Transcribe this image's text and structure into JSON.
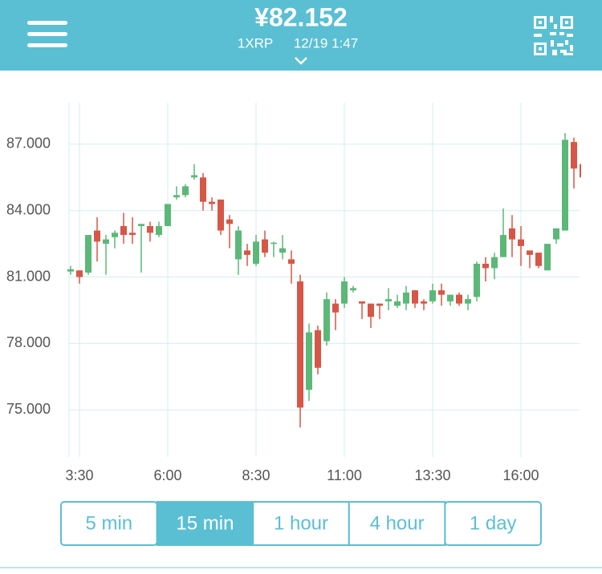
{
  "header": {
    "price": "¥82.152",
    "pair": "1XRP",
    "time": "12/19 1:47"
  },
  "chart_data": {
    "type": "candlestick",
    "categories": [
      null,
      "3:30",
      null,
      null,
      null,
      null,
      null,
      null,
      null,
      null,
      null,
      "6:00",
      null,
      null,
      null,
      null,
      null,
      null,
      null,
      null,
      null,
      "8:30",
      null,
      null,
      null,
      null,
      null,
      null,
      null,
      null,
      null,
      "11:00",
      null,
      null,
      null,
      null,
      null,
      null,
      null,
      null,
      null,
      "13:30",
      null,
      null,
      null,
      null,
      null,
      null,
      null,
      null,
      null,
      "16:00",
      null,
      null,
      null,
      null,
      null,
      null,
      null
    ],
    "open": [
      81.25,
      81.3,
      81.2,
      83.1,
      82.5,
      82.8,
      83.3,
      83.0,
      83.3,
      83.3,
      82.9,
      83.3,
      84.6,
      84.7,
      85.5,
      85.5,
      84.4,
      84.5,
      83.6,
      81.8,
      82.2,
      81.6,
      82.7,
      82.5,
      82.1,
      81.8,
      80.8,
      75.9,
      78.6,
      78.1,
      79.8,
      79.8,
      80.4,
      79.9,
      79.8,
      79.8,
      79.9,
      79.7,
      79.8,
      80.4,
      79.9,
      79.9,
      80.4,
      79.9,
      80.2,
      79.8,
      80.1,
      81.6,
      81.4,
      81.9,
      83.2,
      82.7,
      82.2,
      82.1,
      81.3,
      82.7,
      83.1,
      87.1,
      86.1
    ],
    "high": [
      81.5,
      81.3,
      82.9,
      83.7,
      82.9,
      83.1,
      83.9,
      83.7,
      83.4,
      83.5,
      83.5,
      84.3,
      85.1,
      85.2,
      86.1,
      85.7,
      84.6,
      84.5,
      83.8,
      83.3,
      82.5,
      82.9,
      83.1,
      82.6,
      82.9,
      82.2,
      81.1,
      78.9,
      78.8,
      80.3,
      80.0,
      81.0,
      80.6,
      79.9,
      79.8,
      79.8,
      80.5,
      80.2,
      80.6,
      80.4,
      80.0,
      80.7,
      80.7,
      80.2,
      80.3,
      80.2,
      81.7,
      81.9,
      82.1,
      84.1,
      83.8,
      83.3,
      82.2,
      82.1,
      82.5,
      83.2,
      87.5,
      87.3,
      86.2
    ],
    "low": [
      81.1,
      80.7,
      81.1,
      81.7,
      81.1,
      82.3,
      82.5,
      82.5,
      81.2,
      82.6,
      82.8,
      83.3,
      84.5,
      84.6,
      85.4,
      84.0,
      84.0,
      82.9,
      82.3,
      81.1,
      81.5,
      81.5,
      81.9,
      81.9,
      81.8,
      80.7,
      74.2,
      75.4,
      76.6,
      77.9,
      78.6,
      79.6,
      80.3,
      79.1,
      78.7,
      79.1,
      79.5,
      79.6,
      79.5,
      79.6,
      79.5,
      79.8,
      79.7,
      79.7,
      79.7,
      79.5,
      79.9,
      80.8,
      80.9,
      81.9,
      81.9,
      81.5,
      81.4,
      81.4,
      81.3,
      82.5,
      83.1,
      85.0,
      85.3
    ],
    "close": [
      81.35,
      81.0,
      82.9,
      82.6,
      82.7,
      83.0,
      82.9,
      82.9,
      83.4,
      83.0,
      83.3,
      84.3,
      84.7,
      85.1,
      85.6,
      84.4,
      84.3,
      83.1,
      83.4,
      83.1,
      82.0,
      82.6,
      82.1,
      82.55,
      82.3,
      81.6,
      75.1,
      78.5,
      76.9,
      80.0,
      79.4,
      80.8,
      80.5,
      79.8,
      79.2,
      79.7,
      80.0,
      79.9,
      80.3,
      79.8,
      79.8,
      80.4,
      80.2,
      80.2,
      79.8,
      80.0,
      81.6,
      81.4,
      81.9,
      82.9,
      82.7,
      82.4,
      82.0,
      81.5,
      82.5,
      83.2,
      87.2,
      85.9,
      85.5
    ],
    "up_color": "#5cb878",
    "down_color": "#d65747",
    "ylim": [
      72.87,
      88.88
    ],
    "yticks": [
      {
        "value": 75,
        "label": "75.000"
      },
      {
        "value": 78,
        "label": "78.000"
      },
      {
        "value": 81,
        "label": "81.000"
      },
      {
        "value": 84,
        "label": "84.000"
      },
      {
        "value": 87,
        "label": "87.000"
      }
    ],
    "grid": true
  },
  "intervals": {
    "options": [
      "5 min",
      "15 min",
      "1 hour",
      "4 hour",
      "1 day"
    ],
    "selected": 1
  }
}
